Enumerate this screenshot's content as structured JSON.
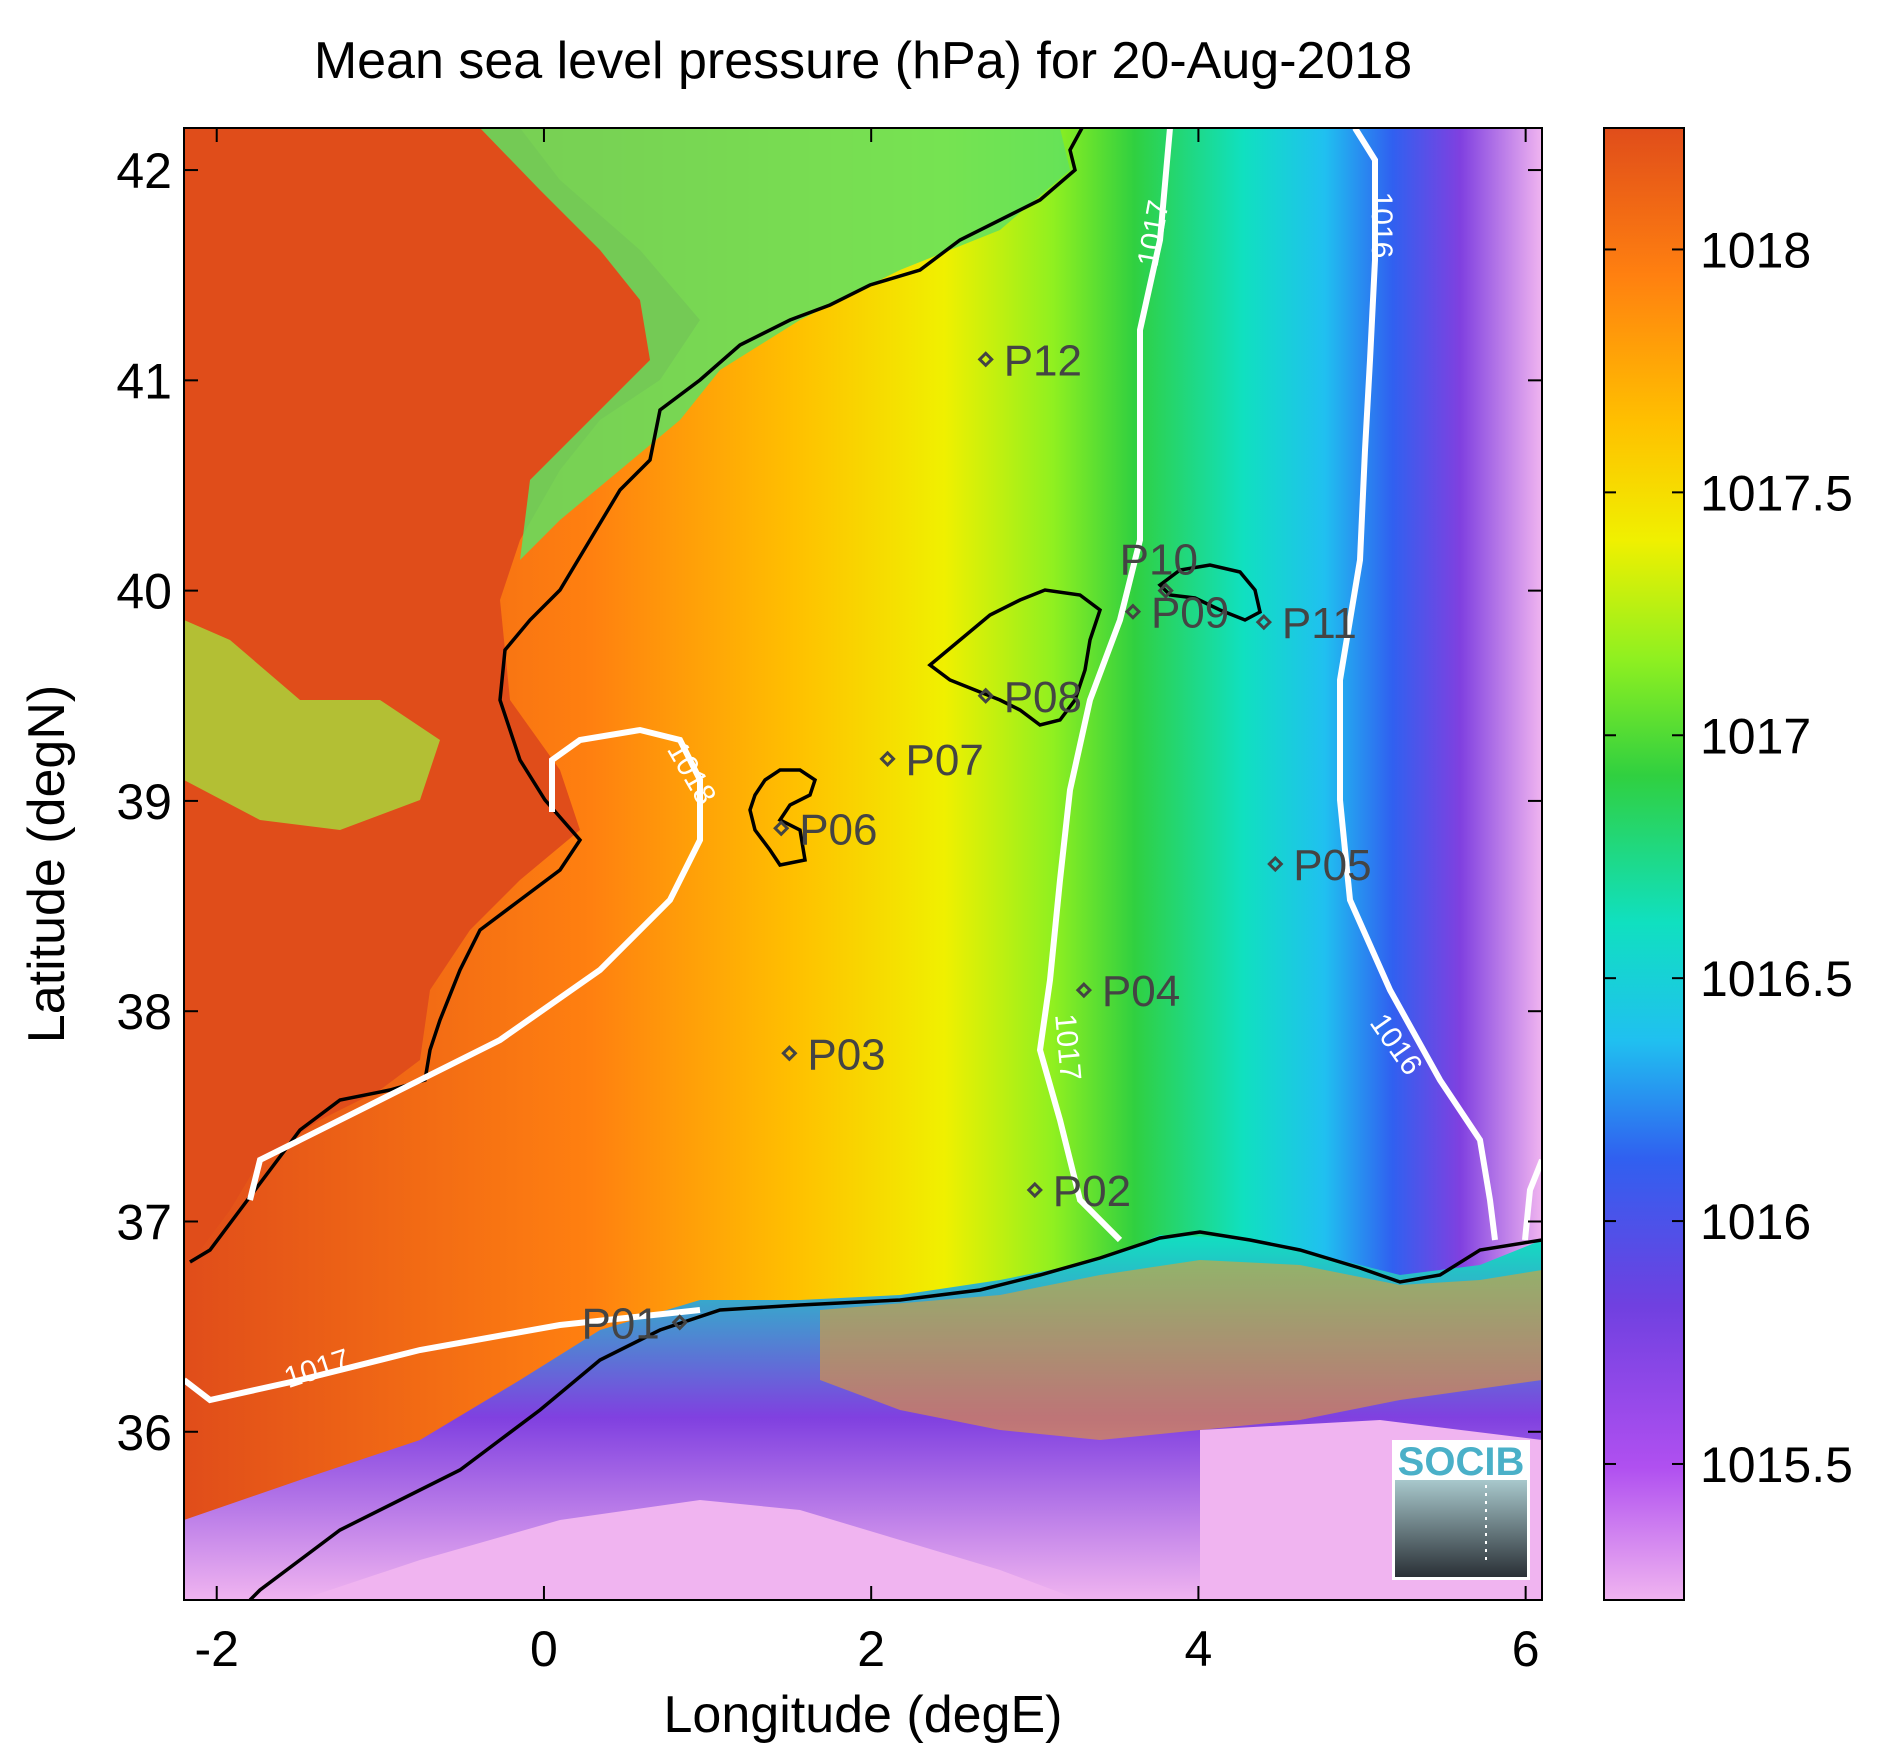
{
  "chart_data": {
    "type": "heatmap",
    "title": "Mean sea level pressure (hPa) for 20-Aug-2018",
    "xlabel": "Longitude (degE)",
    "ylabel": "Latitude (degN)",
    "xlim": [
      -2.2,
      6.1
    ],
    "ylim": [
      35.2,
      42.2
    ],
    "xticks": [
      -2,
      0,
      2,
      4,
      6
    ],
    "xtick_labels": [
      "-2",
      "0",
      "2",
      "4",
      "6"
    ],
    "yticks": [
      36,
      37,
      38,
      39,
      40,
      41,
      42
    ],
    "ytick_labels": [
      "36",
      "37",
      "38",
      "39",
      "40",
      "41",
      "42"
    ],
    "colorbar": {
      "range": [
        1015.22,
        1018.25
      ],
      "ticks": [
        1015.5,
        1016,
        1016.5,
        1017,
        1017.5,
        1018
      ],
      "tick_labels": [
        "1015.5",
        "1016",
        "1016.5",
        "1017",
        "1017.5",
        "1018"
      ],
      "colormap": [
        "#f0b4f0",
        "#b050f0",
        "#7040e0",
        "#3060f0",
        "#20c0f0",
        "#10e0c0",
        "#30d040",
        "#90f020",
        "#f0f000",
        "#ffc000",
        "#ff8010",
        "#e04d1a"
      ]
    },
    "contours": [
      {
        "level": 1018,
        "label": "1018",
        "color": "#ffffff"
      },
      {
        "level": 1017,
        "label": "1017",
        "color": "#ffffff"
      },
      {
        "level": 1016,
        "label": "1016",
        "color": "#ffffff"
      }
    ],
    "points": [
      {
        "label": "P01",
        "lon": 0.83,
        "lat": 36.52
      },
      {
        "label": "P02",
        "lon": 3.0,
        "lat": 37.15
      },
      {
        "label": "P03",
        "lon": 1.5,
        "lat": 37.8
      },
      {
        "label": "P04",
        "lon": 3.3,
        "lat": 38.1
      },
      {
        "label": "P05",
        "lon": 4.47,
        "lat": 38.7
      },
      {
        "label": "P06",
        "lon": 1.45,
        "lat": 38.87
      },
      {
        "label": "P07",
        "lon": 2.1,
        "lat": 39.2
      },
      {
        "label": "P08",
        "lon": 2.7,
        "lat": 39.5
      },
      {
        "label": "P09",
        "lon": 3.6,
        "lat": 39.9
      },
      {
        "label": "P10",
        "lon": 3.8,
        "lat": 40.0
      },
      {
        "label": "P11",
        "lon": 4.4,
        "lat": 39.85
      },
      {
        "label": "P12",
        "lon": 2.7,
        "lat": 41.1
      }
    ]
  },
  "logo": {
    "text": "SOCIB",
    "color": "#4ab0c8"
  }
}
